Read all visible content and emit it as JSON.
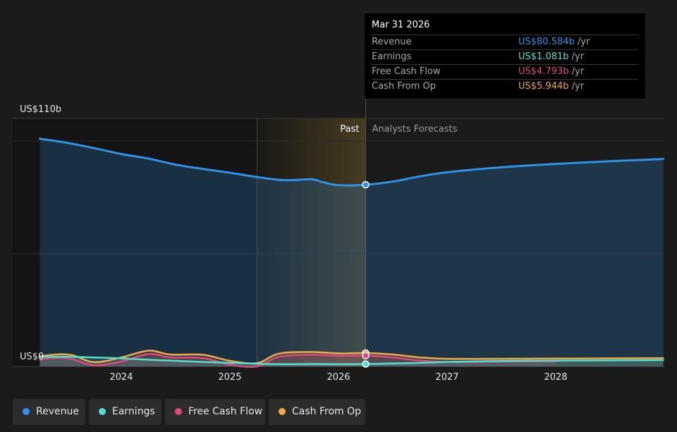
{
  "tooltip": {
    "date": "Mar 31 2026",
    "rows": [
      {
        "label": "Revenue",
        "value": "US$80.584b",
        "unit": "/yr",
        "color": "#2e93e6"
      },
      {
        "label": "Earnings",
        "value": "US$1.081b",
        "unit": "/yr",
        "color": "#4ee1cf"
      },
      {
        "label": "Free Cash Flow",
        "value": "US$4.793b",
        "unit": "/yr",
        "color": "#e0497f"
      },
      {
        "label": "Cash From Op",
        "value": "US$5.944b",
        "unit": "/yr",
        "color": "#f0a94a"
      }
    ]
  },
  "legend": [
    {
      "label": "Revenue",
      "color": "#2e93e6"
    },
    {
      "label": "Earnings",
      "color": "#4ee1cf"
    },
    {
      "label": "Free Cash Flow",
      "color": "#e0497f"
    },
    {
      "label": "Cash From Op",
      "color": "#f0a94a"
    }
  ],
  "chart_data": {
    "type": "area",
    "title": "",
    "xlabel": "",
    "ylabel": "",
    "y_max_label": "US$110b",
    "y_min_label": "US$0",
    "ylim": [
      0,
      110
    ],
    "x_ticks": [
      "2024",
      "2025",
      "2026",
      "2027",
      "2028"
    ],
    "past_label": "Past",
    "forecast_label": "Analysts Forecasts",
    "highlight_date": 2026.25,
    "shaded_start": 2025.25,
    "series": [
      {
        "name": "Revenue",
        "color": "#2e93e6",
        "x": [
          2023.25,
          2023.5,
          2023.75,
          2024.0,
          2024.25,
          2024.5,
          2024.75,
          2025.0,
          2025.25,
          2025.5,
          2025.75,
          2025.85,
          2026.0,
          2026.25,
          2026.5,
          2026.75,
          2027.0,
          2027.5,
          2028.0,
          2028.5,
          2028.99
        ],
        "y": [
          101.0,
          99.2,
          96.8,
          94.2,
          92.2,
          89.5,
          87.6,
          85.9,
          84.0,
          82.6,
          83.0,
          81.8,
          80.4,
          80.584,
          82.0,
          84.3,
          86.1,
          88.3,
          89.8,
          91.0,
          92.0
        ]
      },
      {
        "name": "Earnings",
        "color": "#4ee1cf",
        "x": [
          2023.25,
          2023.5,
          2023.75,
          2024.0,
          2024.25,
          2024.5,
          2024.75,
          2025.0,
          2025.25,
          2025.5,
          2025.75,
          2026.0,
          2026.25,
          2026.5,
          2026.75,
          2027.0,
          2027.5,
          2028.0,
          2028.5,
          2028.99
        ],
        "y": [
          4.2,
          4.3,
          4.0,
          3.6,
          3.0,
          2.5,
          2.0,
          1.6,
          1.2,
          1.0,
          1.1,
          1.0,
          1.081,
          1.3,
          1.6,
          2.0,
          2.4,
          2.6,
          2.7,
          2.8
        ]
      },
      {
        "name": "Free Cash Flow",
        "color": "#e0497f",
        "x": [
          2023.25,
          2023.4,
          2023.55,
          2023.75,
          2024.0,
          2024.25,
          2024.45,
          2024.75,
          2025.0,
          2025.25,
          2025.45,
          2025.75,
          2026.0,
          2026.25,
          2026.5,
          2026.75,
          2027.0,
          2027.5,
          2028.0
        ],
        "y": [
          3.0,
          3.8,
          3.2,
          0.5,
          2.2,
          5.5,
          4.0,
          3.7,
          0.8,
          0.0,
          4.3,
          5.2,
          4.7,
          4.793,
          4.0,
          2.6,
          2.0,
          2.2,
          2.3
        ]
      },
      {
        "name": "Cash From Op",
        "color": "#f0a94a",
        "x": [
          2023.25,
          2023.4,
          2023.55,
          2023.75,
          2024.0,
          2024.25,
          2024.45,
          2024.75,
          2025.0,
          2025.25,
          2025.45,
          2025.75,
          2026.0,
          2026.25,
          2026.5,
          2026.75,
          2027.0,
          2027.5,
          2028.0,
          2028.5,
          2028.99
        ],
        "y": [
          4.5,
          5.3,
          5.0,
          1.9,
          4.0,
          7.0,
          5.3,
          5.2,
          2.5,
          1.5,
          5.7,
          6.4,
          5.8,
          5.944,
          5.3,
          4.0,
          3.4,
          3.4,
          3.5,
          3.6,
          3.7
        ]
      }
    ]
  }
}
